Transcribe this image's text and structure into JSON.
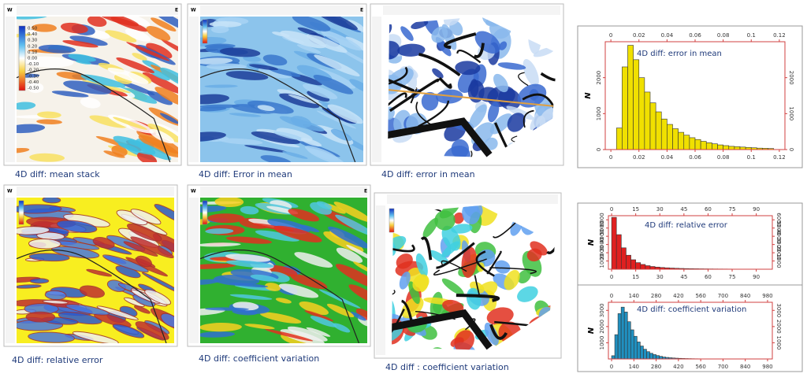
{
  "panels": [
    {
      "caption": "4D diff: mean stack",
      "left_label": "W",
      "right_label": "E",
      "colorbar": [
        "0.50",
        "0.40",
        "0.30",
        "0.20",
        "0.10",
        "0.00",
        "-0.10",
        "-0.20",
        "-0.30",
        "-0.40",
        "-0.50"
      ]
    },
    {
      "caption": "4D diff: Error in mean",
      "left_label": "W",
      "right_label": "E"
    },
    {
      "caption": "4D diff: error in mean"
    },
    {
      "caption": "4D diff: relative error",
      "left_label": "W"
    },
    {
      "caption": "4D diff: coefficient variation",
      "left_label": "W",
      "right_label": "E"
    },
    {
      "caption": "4D diff : coefficient variation"
    }
  ],
  "chart_data": [
    {
      "type": "histogram",
      "title": "4D diff: error in mean",
      "y_label": "N",
      "color": "#f0e000",
      "bins": [
        0.004,
        0.008,
        0.012,
        0.016,
        0.02,
        0.024,
        0.028,
        0.032,
        0.036,
        0.04,
        0.044,
        0.048,
        0.052,
        0.056,
        0.06,
        0.064,
        0.068,
        0.072,
        0.076,
        0.08,
        0.084,
        0.088,
        0.092,
        0.096,
        0.1,
        0.104,
        0.108,
        0.112,
        0.116
      ],
      "counts": [
        600,
        2300,
        2900,
        2500,
        2000,
        1600,
        1300,
        1050,
        850,
        700,
        580,
        480,
        400,
        330,
        280,
        230,
        190,
        160,
        130,
        110,
        90,
        80,
        70,
        60,
        50,
        40,
        35,
        30
      ],
      "xlim": [
        -0.004,
        0.124
      ],
      "ylim": [
        0,
        3000
      ],
      "xticks": [
        0,
        0.02,
        0.04,
        0.06,
        0.08,
        0.1,
        0.12
      ],
      "yticks": [
        0,
        1000,
        2000
      ]
    },
    {
      "type": "histogram",
      "title": "4D diff: relative error",
      "y_label": "N",
      "color": "#e02020",
      "bins": [
        0,
        3,
        6,
        9,
        12,
        15,
        18,
        21,
        24,
        27,
        30,
        33,
        36,
        39,
        42,
        45,
        48,
        51,
        54,
        57,
        60,
        63,
        66,
        69,
        72,
        75,
        78,
        81,
        84,
        87,
        90,
        93,
        96,
        99
      ],
      "counts": [
        6300,
        4200,
        2600,
        1700,
        1150,
        800,
        580,
        430,
        330,
        260,
        210,
        170,
        140,
        115,
        95,
        80,
        68,
        58,
        50,
        43,
        37,
        32,
        28,
        25,
        22,
        19,
        17,
        15,
        13,
        12,
        11,
        10,
        9
      ],
      "xlim": [
        -2,
        100
      ],
      "ylim": [
        0,
        6500
      ],
      "xticks": [
        0,
        15,
        30,
        45,
        60,
        75,
        90
      ],
      "yticks": [
        1000,
        2000,
        3000,
        4000,
        5000,
        6000
      ]
    },
    {
      "type": "histogram",
      "title": "4D diff: coefficient variation",
      "y_label": "N",
      "color": "#2090c0",
      "bins": [
        0,
        20,
        40,
        60,
        80,
        100,
        120,
        140,
        160,
        180,
        200,
        220,
        240,
        260,
        280,
        300,
        320,
        340,
        360,
        380,
        400,
        420,
        440,
        460,
        480,
        500,
        520,
        540,
        560,
        580,
        600,
        620,
        640,
        660,
        680,
        700,
        720,
        740,
        760,
        780,
        800,
        820,
        840,
        860,
        880,
        900,
        920,
        940,
        960,
        980,
        1000
      ],
      "counts": [
        200,
        1500,
        2800,
        3200,
        2900,
        2300,
        1800,
        1400,
        1050,
        800,
        600,
        450,
        350,
        270,
        210,
        160,
        120,
        95,
        75,
        60,
        48,
        38,
        30,
        24,
        20,
        16,
        13,
        11,
        9,
        8,
        7,
        6,
        5,
        5,
        4,
        4,
        3,
        3,
        3,
        2,
        2,
        2,
        2,
        1,
        1,
        1,
        1,
        1,
        1,
        1
      ],
      "xlim": [
        -20,
        1010
      ],
      "ylim": [
        0,
        3500
      ],
      "xticks": [
        0,
        140,
        280,
        420,
        560,
        700,
        840,
        980
      ],
      "yticks": [
        1000,
        2000,
        3000
      ]
    }
  ]
}
